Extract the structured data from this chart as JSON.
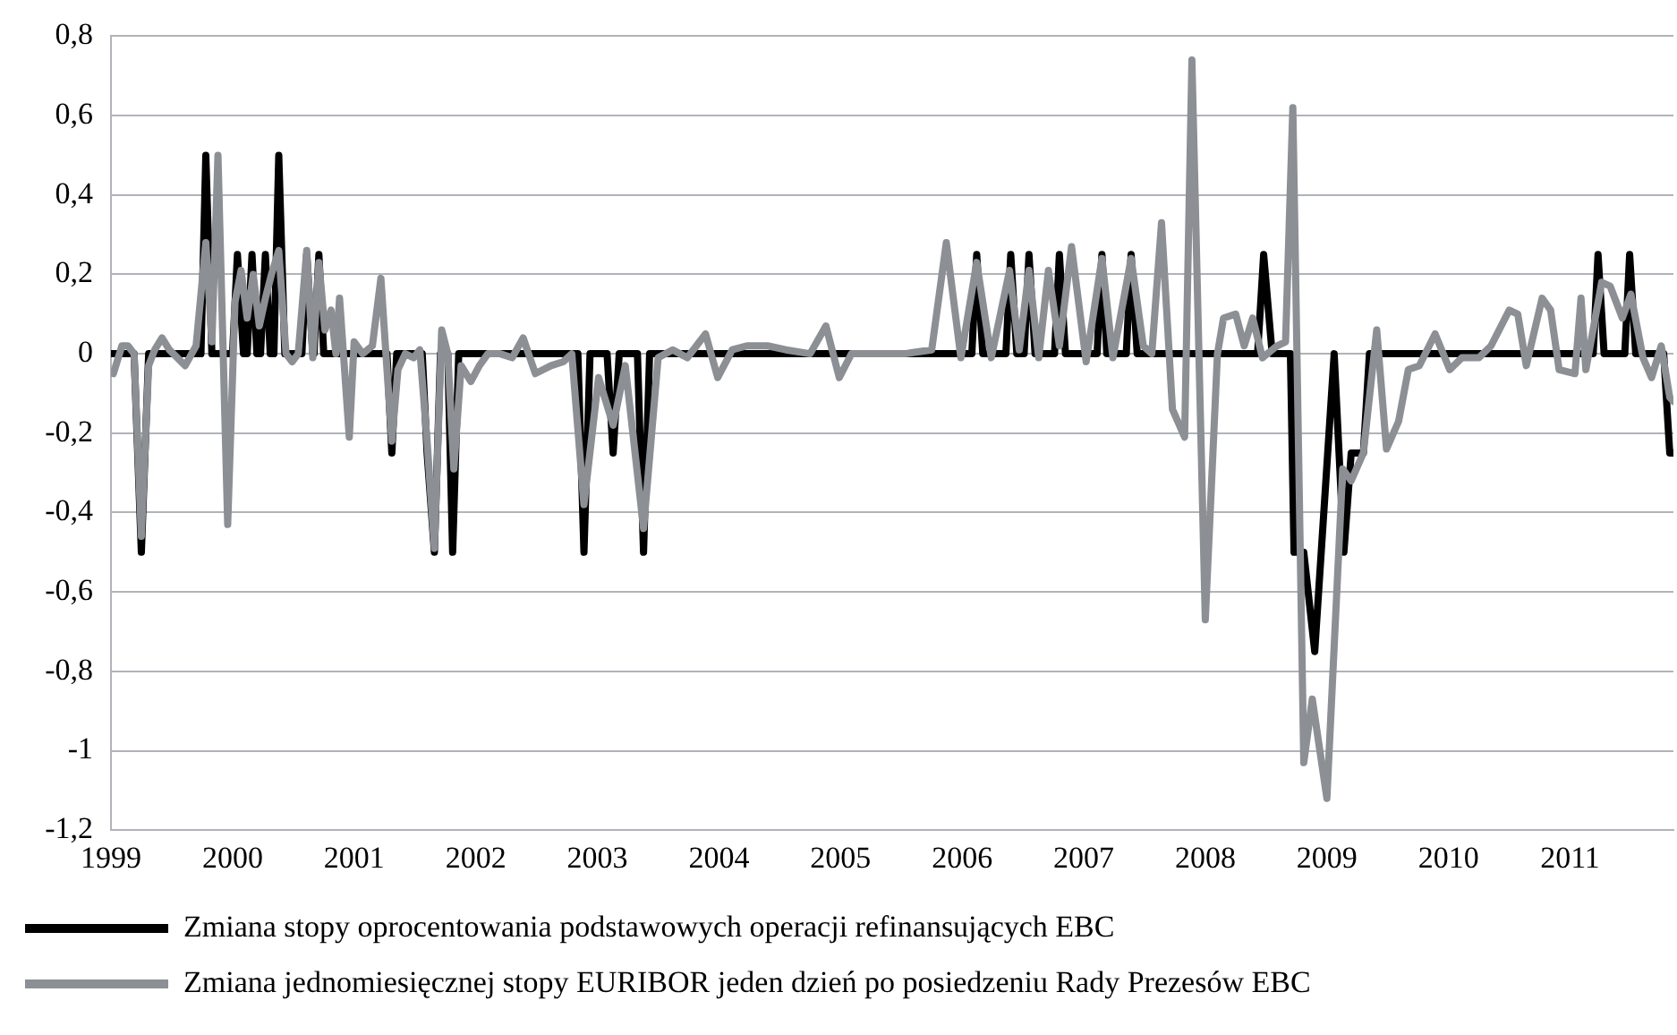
{
  "chart_data": {
    "type": "line",
    "xlim": [
      1999,
      2011.85
    ],
    "xticks": [
      1999,
      2000,
      2001,
      2002,
      2003,
      2004,
      2005,
      2006,
      2007,
      2008,
      2009,
      2010,
      2011
    ],
    "ylim": [
      -1.2,
      0.8
    ],
    "yticks": [
      {
        "value": -1.2,
        "label": "-1,2"
      },
      {
        "value": -1,
        "label": "-1"
      },
      {
        "value": -0.8,
        "label": "-0,8"
      },
      {
        "value": -0.6,
        "label": "-0,6"
      },
      {
        "value": -0.4,
        "label": "-0,4"
      },
      {
        "value": -0.2,
        "label": "-0,2"
      },
      {
        "value": 0,
        "label": "0"
      },
      {
        "value": 0.2,
        "label": "0,2"
      },
      {
        "value": 0.4,
        "label": "0,4"
      },
      {
        "value": 0.6,
        "label": "0,6"
      },
      {
        "value": 0.8,
        "label": "0,8"
      }
    ],
    "grid": "y",
    "legend": "bottom",
    "marker": "none",
    "line_style": "solid",
    "series": [
      {
        "name": "Zmiana stopy oprocentowania podstawowych operacji refinansujących EBC",
        "color": "#000000",
        "x": [
          1999,
          1999.19,
          1999.25,
          1999.31,
          1999.74,
          1999.78,
          1999.83,
          2000,
          2000.04,
          2000.09,
          2000.12,
          2000.16,
          2000.2,
          2000.23,
          2000.27,
          2000.31,
          2000.34,
          2000.38,
          2000.43,
          2000.57,
          2000.61,
          2000.66,
          2000.67,
          2000.71,
          2000.75,
          2001.27,
          2001.31,
          2001.35,
          2001.56,
          2001.6,
          2001.66,
          2001.71,
          2001.77,
          2001.81,
          2001.86,
          2002.84,
          2002.89,
          2002.94,
          2003.08,
          2003.13,
          2003.18,
          2003.33,
          2003.38,
          2003.43,
          2005.83,
          2005.87,
          2005.92,
          2006.08,
          2006.12,
          2006.17,
          2006.36,
          2006.4,
          2006.45,
          2006.51,
          2006.55,
          2006.6,
          2006.76,
          2006.8,
          2006.85,
          2007.11,
          2007.15,
          2007.19,
          2007.35,
          2007.39,
          2007.44,
          2008.43,
          2008.48,
          2008.55,
          2008.7,
          2008.73,
          2008.81,
          2008.9,
          2009.06,
          2009.14,
          2009.2,
          2009.3,
          2009.35,
          2011.19,
          2011.23,
          2011.28,
          2011.45,
          2011.49,
          2011.54,
          2011.77,
          2011.82,
          2011.85
        ],
        "values": [
          0,
          0,
          -0.5,
          0,
          0,
          0.5,
          0,
          0,
          0.25,
          0,
          0,
          0.25,
          0,
          0,
          0.25,
          0,
          0,
          0.5,
          0,
          0,
          0.25,
          0,
          0,
          0.25,
          0,
          0,
          -0.25,
          0,
          0,
          -0.25,
          -0.5,
          0,
          0,
          -0.5,
          0,
          0,
          -0.5,
          0,
          0,
          -0.25,
          0,
          0,
          -0.5,
          0,
          0,
          null,
          0,
          0,
          0.25,
          0,
          0,
          0.25,
          0,
          0,
          0.25,
          0,
          0,
          0.25,
          0,
          0,
          0.25,
          0,
          0,
          0.25,
          0,
          0,
          0.25,
          0,
          0,
          -0.5,
          -0.5,
          -0.75,
          0,
          -0.5,
          -0.25,
          -0.25,
          0,
          0,
          0.25,
          0,
          0,
          0.25,
          0,
          0,
          -0.25,
          -0.25
        ]
      },
      {
        "name": "Zmiana jednomiesięcznej stopy EURIBOR jeden dzień po posiedzeniu Rady Prezesów EBC",
        "color": "#8c8f94",
        "x": [
          1999.02,
          1999.09,
          1999.14,
          1999.19,
          1999.25,
          1999.31,
          1999.36,
          1999.42,
          1999.48,
          1999.61,
          1999.7,
          1999.78,
          1999.83,
          1999.88,
          1999.96,
          2000.02,
          2000.07,
          2000.12,
          2000.17,
          2000.22,
          2000.27,
          2000.32,
          2000.38,
          2000.44,
          2000.49,
          2000.54,
          2000.61,
          2000.66,
          2000.71,
          2000.76,
          2000.81,
          2000.85,
          2000.88,
          2000.96,
          2001,
          2001.07,
          2001.15,
          2001.22,
          2001.27,
          2001.31,
          2001.36,
          2001.42,
          2001.49,
          2001.54,
          2001.6,
          2001.66,
          2001.72,
          2001.77,
          2001.82,
          2001.88,
          2001.96,
          2002.03,
          2002.1,
          2002.2,
          2002.3,
          2002.39,
          2002.49,
          2002.62,
          2002.72,
          2002.79,
          2002.89,
          2003.01,
          2003.13,
          2003.23,
          2003.38,
          2003.5,
          2003.62,
          2003.74,
          2003.89,
          2003.99,
          2004.11,
          2004.23,
          2004.4,
          2004.55,
          2004.75,
          2004.88,
          2004.99,
          2005.09,
          2005.28,
          2005.53,
          2005.75,
          2005.87,
          2005.99,
          2006.12,
          2006.24,
          2006.39,
          2006.47,
          2006.55,
          2006.63,
          2006.71,
          2006.8,
          2006.9,
          2007.02,
          2007.15,
          2007.24,
          2007.39,
          2007.49,
          2007.56,
          2007.64,
          2007.73,
          2007.83,
          2007.89,
          2008,
          2008.1,
          2008.15,
          2008.25,
          2008.32,
          2008.39,
          2008.47,
          2008.59,
          2008.66,
          2008.72,
          2008.81,
          2008.88,
          2009,
          2009.13,
          2009.2,
          2009.3,
          2009.41,
          2009.49,
          2009.59,
          2009.67,
          2009.76,
          2009.89,
          2010.01,
          2010.11,
          2010.25,
          2010.35,
          2010.5,
          2010.57,
          2010.64,
          2010.77,
          2010.84,
          2010.91,
          2011.04,
          2011.09,
          2011.13,
          2011.26,
          2011.33,
          2011.43,
          2011.5,
          2011.6,
          2011.67,
          2011.75,
          2011.82,
          2011.85
        ],
        "values": [
          -0.05,
          0.02,
          0.02,
          0,
          -0.46,
          -0.03,
          0.01,
          0.04,
          0.01,
          -0.03,
          0.02,
          0.28,
          0.03,
          0.5,
          -0.43,
          0.13,
          0.21,
          0.09,
          0.2,
          0.07,
          0.14,
          0.2,
          0.26,
          0,
          -0.02,
          0,
          0.26,
          -0.01,
          0.23,
          0.06,
          0.11,
          0,
          0.14,
          -0.21,
          0.03,
          0,
          0.02,
          0.19,
          -0.04,
          -0.22,
          -0.04,
          0,
          -0.01,
          0.01,
          -0.22,
          -0.49,
          0.06,
          0,
          -0.29,
          -0.03,
          -0.07,
          -0.03,
          0,
          0,
          -0.01,
          0.04,
          -0.05,
          -0.03,
          -0.02,
          0,
          -0.38,
          -0.06,
          -0.18,
          -0.03,
          -0.44,
          -0.01,
          0.01,
          -0.01,
          0.05,
          -0.06,
          0.01,
          0.02,
          0.02,
          0.01,
          0,
          0.07,
          -0.06,
          0,
          0,
          0,
          0.01,
          0.28,
          -0.01,
          0.23,
          -0.01,
          0.21,
          0.01,
          0.21,
          -0.01,
          0.21,
          0.02,
          0.27,
          -0.02,
          0.24,
          -0.01,
          0.24,
          0.02,
          0,
          0.33,
          -0.14,
          -0.21,
          0.74,
          -0.67,
          0,
          0.09,
          0.1,
          0.02,
          0.09,
          -0.01,
          0.02,
          0.03,
          0.62,
          -1.03,
          -0.87,
          -1.12,
          -0.29,
          -0.32,
          -0.25,
          0.06,
          -0.24,
          -0.17,
          -0.04,
          -0.03,
          0.05,
          -0.04,
          -0.01,
          -0.01,
          0.02,
          0.11,
          0.1,
          -0.03,
          0.14,
          0.11,
          -0.04,
          -0.05,
          0.14,
          -0.04,
          0.18,
          0.17,
          0.09,
          0.15,
          -0.01,
          -0.06,
          0.02,
          -0.11,
          -0.12
        ]
      }
    ]
  }
}
